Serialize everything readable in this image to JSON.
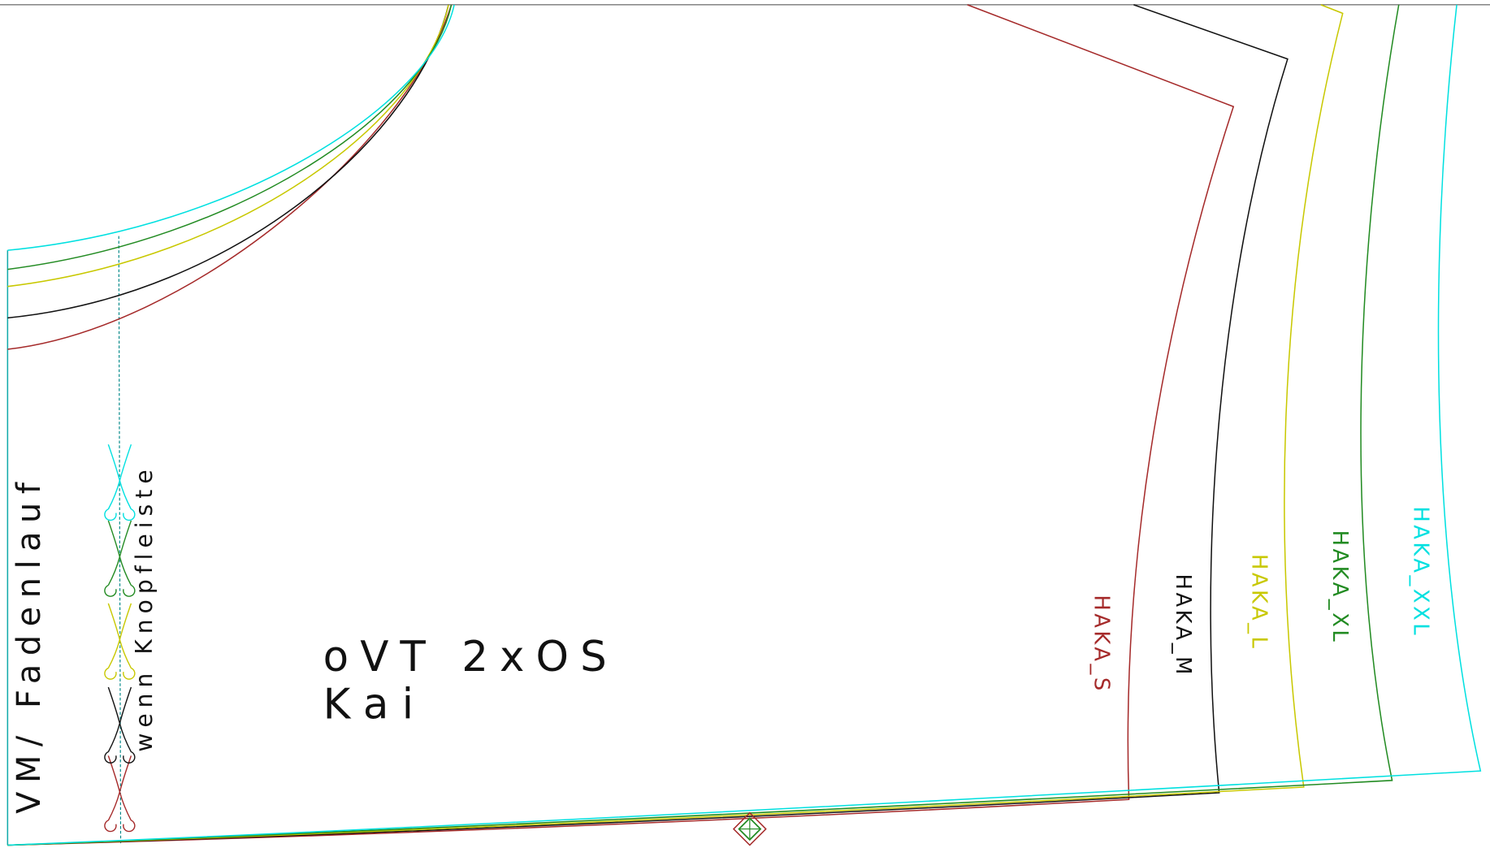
{
  "labels": {
    "grainline": "VM/ Fadenlauf",
    "note": "wenn Knopfleiste",
    "piece": "oVT 2xOS",
    "name": "Kai"
  },
  "sizes": [
    {
      "name": "HAKA_S",
      "color": "#a52a2a"
    },
    {
      "name": "HAKA_M",
      "color": "#111111"
    },
    {
      "name": "HAKA_L",
      "color": "#c8c800"
    },
    {
      "name": "HAKA_XL",
      "color": "#228b22"
    },
    {
      "name": "HAKA_XXL",
      "color": "#00e0e0"
    }
  ]
}
